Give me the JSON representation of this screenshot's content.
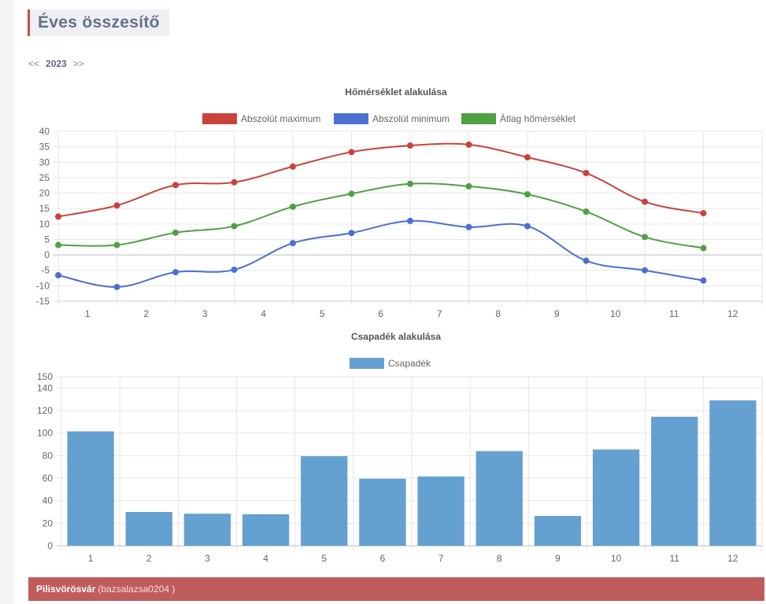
{
  "page": {
    "title": "Éves összesítő",
    "year_nav": {
      "prev": "<<",
      "year": "2023",
      "next": ">>"
    }
  },
  "footer": {
    "station": "Pilisvörösvár",
    "user": "(bazsalazsa0204 )"
  },
  "chart_data": [
    {
      "type": "line",
      "title": "Hőmérséklet alakulása",
      "categories": [
        "1",
        "2",
        "3",
        "4",
        "5",
        "6",
        "7",
        "8",
        "9",
        "10",
        "11",
        "12"
      ],
      "ylim": [
        -15,
        40
      ],
      "yticks": [
        40,
        35,
        30,
        25,
        20,
        15,
        10,
        5,
        0,
        -5,
        -10,
        -15
      ],
      "grid": true,
      "legend": "top",
      "series": [
        {
          "name": "Abszolút maximum",
          "color": "#c9423c",
          "values": [
            12.4,
            16.0,
            22.6,
            23.5,
            28.6,
            33.3,
            35.4,
            35.7,
            31.6,
            26.5,
            17.2,
            13.5
          ]
        },
        {
          "name": "Abszolút minimum",
          "color": "#4c6fd2",
          "values": [
            -6.6,
            -10.4,
            -5.6,
            -4.8,
            3.8,
            7.1,
            11.0,
            9.0,
            9.3,
            -1.9,
            -5.0,
            -8.3
          ]
        },
        {
          "name": "Átlag hőmérséklet",
          "color": "#4fa043",
          "values": [
            3.2,
            3.2,
            7.2,
            9.3,
            15.6,
            19.8,
            23.0,
            22.2,
            19.6,
            14.0,
            5.8,
            2.2
          ]
        }
      ]
    },
    {
      "type": "bar",
      "title": "Csapadék alakulása",
      "categories": [
        "1",
        "2",
        "3",
        "4",
        "5",
        "6",
        "7",
        "8",
        "9",
        "10",
        "11",
        "12"
      ],
      "ylim": [
        0,
        150
      ],
      "yticks": [
        150,
        140,
        120,
        100,
        80,
        60,
        40,
        20,
        0
      ],
      "grid": true,
      "legend": "top",
      "series": [
        {
          "name": "Csapadék",
          "color": "#65a1d0",
          "values": [
            101.5,
            30,
            28.5,
            28,
            79.5,
            59.5,
            61.5,
            84,
            26.5,
            85.5,
            114.5,
            129
          ]
        }
      ]
    }
  ]
}
